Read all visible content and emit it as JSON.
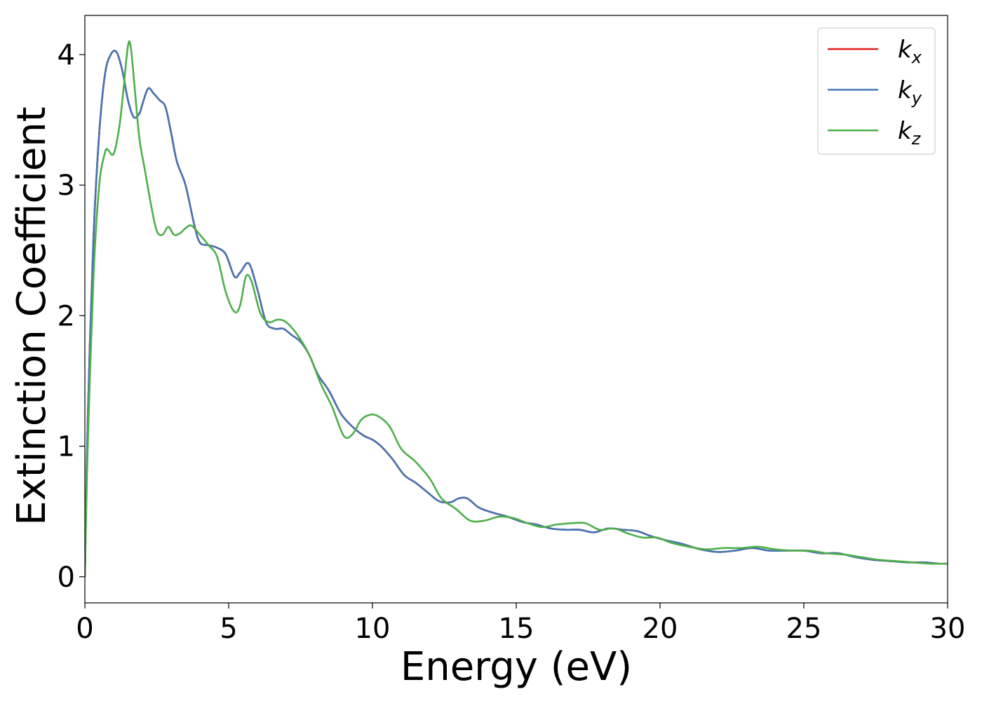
{
  "chart_data": {
    "type": "line",
    "xlabel": "Energy (eV)",
    "ylabel": "Extinction Coefficient",
    "xlim": [
      0,
      30
    ],
    "ylim": [
      -0.2,
      4.3
    ],
    "xticks": [
      0,
      5,
      10,
      15,
      20,
      25,
      30
    ],
    "yticks": [
      0,
      1,
      2,
      3,
      4
    ],
    "grid": false,
    "legend_position": "top-right",
    "series": [
      {
        "name": "k_x",
        "label_base": "k",
        "label_sub": "x",
        "color": "#e41a1c",
        "x": [
          0,
          0.1,
          0.3,
          0.5,
          0.7,
          0.9,
          1.1,
          1.3,
          1.5,
          1.7,
          1.9,
          2.0,
          2.2,
          2.4,
          2.6,
          2.8,
          3.0,
          3.2,
          3.5,
          3.8,
          4.0,
          4.3,
          4.6,
          4.9,
          5.2,
          5.4,
          5.7,
          6.0,
          6.3,
          6.6,
          6.9,
          7.2,
          7.5,
          7.8,
          8.1,
          8.5,
          8.9,
          9.3,
          9.7,
          10.0,
          10.3,
          10.7,
          11.1,
          11.5,
          11.9,
          12.3,
          12.7,
          13.0,
          13.3,
          13.7,
          14.2,
          14.7,
          15.2,
          15.7,
          16.2,
          16.7,
          17.2,
          17.7,
          18.2,
          18.7,
          19.2,
          19.7,
          20.2,
          20.8,
          21.4,
          22.0,
          22.6,
          23.2,
          23.8,
          24.4,
          25.0,
          25.6,
          26.2,
          26.8,
          27.4,
          28.0,
          28.6,
          29.2,
          29.7,
          30.0
        ],
        "y": [
          0,
          1.2,
          2.6,
          3.4,
          3.85,
          4.0,
          4.02,
          3.88,
          3.65,
          3.52,
          3.55,
          3.62,
          3.74,
          3.7,
          3.65,
          3.6,
          3.4,
          3.18,
          3.0,
          2.7,
          2.56,
          2.54,
          2.52,
          2.47,
          2.3,
          2.33,
          2.4,
          2.2,
          1.95,
          1.9,
          1.9,
          1.85,
          1.8,
          1.7,
          1.55,
          1.42,
          1.25,
          1.15,
          1.08,
          1.05,
          1.0,
          0.9,
          0.78,
          0.72,
          0.65,
          0.58,
          0.57,
          0.6,
          0.6,
          0.53,
          0.49,
          0.46,
          0.42,
          0.4,
          0.37,
          0.36,
          0.36,
          0.34,
          0.37,
          0.36,
          0.35,
          0.31,
          0.28,
          0.25,
          0.21,
          0.19,
          0.2,
          0.22,
          0.2,
          0.2,
          0.2,
          0.18,
          0.18,
          0.15,
          0.13,
          0.12,
          0.11,
          0.11,
          0.1,
          0.1
        ]
      },
      {
        "name": "k_y",
        "label_base": "k",
        "label_sub": "y",
        "color": "#4575b4",
        "x": [
          0,
          0.1,
          0.3,
          0.5,
          0.7,
          0.9,
          1.1,
          1.3,
          1.5,
          1.7,
          1.9,
          2.0,
          2.2,
          2.4,
          2.6,
          2.8,
          3.0,
          3.2,
          3.5,
          3.8,
          4.0,
          4.3,
          4.6,
          4.9,
          5.2,
          5.4,
          5.7,
          6.0,
          6.3,
          6.6,
          6.9,
          7.2,
          7.5,
          7.8,
          8.1,
          8.5,
          8.9,
          9.3,
          9.7,
          10.0,
          10.3,
          10.7,
          11.1,
          11.5,
          11.9,
          12.3,
          12.7,
          13.0,
          13.3,
          13.7,
          14.2,
          14.7,
          15.2,
          15.7,
          16.2,
          16.7,
          17.2,
          17.7,
          18.2,
          18.7,
          19.2,
          19.7,
          20.2,
          20.8,
          21.4,
          22.0,
          22.6,
          23.2,
          23.8,
          24.4,
          25.0,
          25.6,
          26.2,
          26.8,
          27.4,
          28.0,
          28.6,
          29.2,
          29.7,
          30.0
        ],
        "y": [
          0,
          1.2,
          2.6,
          3.4,
          3.85,
          4.0,
          4.02,
          3.88,
          3.65,
          3.52,
          3.55,
          3.62,
          3.74,
          3.7,
          3.65,
          3.6,
          3.4,
          3.18,
          3.0,
          2.7,
          2.56,
          2.54,
          2.52,
          2.47,
          2.3,
          2.33,
          2.4,
          2.2,
          1.95,
          1.9,
          1.9,
          1.85,
          1.8,
          1.7,
          1.55,
          1.42,
          1.25,
          1.15,
          1.08,
          1.05,
          1.0,
          0.9,
          0.78,
          0.72,
          0.65,
          0.58,
          0.57,
          0.6,
          0.6,
          0.53,
          0.49,
          0.46,
          0.42,
          0.4,
          0.37,
          0.36,
          0.36,
          0.34,
          0.37,
          0.36,
          0.35,
          0.31,
          0.28,
          0.25,
          0.21,
          0.19,
          0.2,
          0.22,
          0.2,
          0.2,
          0.2,
          0.18,
          0.18,
          0.15,
          0.13,
          0.12,
          0.11,
          0.11,
          0.1,
          0.1
        ]
      },
      {
        "name": "k_z",
        "label_base": "k",
        "label_sub": "z",
        "color": "#4daf4a",
        "x": [
          0,
          0.1,
          0.3,
          0.5,
          0.7,
          0.8,
          1.0,
          1.2,
          1.35,
          1.5,
          1.6,
          1.75,
          1.9,
          2.1,
          2.3,
          2.5,
          2.7,
          2.9,
          3.1,
          3.3,
          3.5,
          3.7,
          4.0,
          4.3,
          4.6,
          4.9,
          5.2,
          5.4,
          5.6,
          5.8,
          6.1,
          6.4,
          6.7,
          7.0,
          7.4,
          7.8,
          8.2,
          8.6,
          9.0,
          9.3,
          9.6,
          9.9,
          10.2,
          10.6,
          11.0,
          11.5,
          12.0,
          12.4,
          12.9,
          13.4,
          13.9,
          14.4,
          14.9,
          15.4,
          15.9,
          16.4,
          16.9,
          17.4,
          17.9,
          18.4,
          18.9,
          19.4,
          19.9,
          20.4,
          21.0,
          21.6,
          22.2,
          22.8,
          23.4,
          24.0,
          24.6,
          25.2,
          25.8,
          26.4,
          27.0,
          27.6,
          28.2,
          28.8,
          29.4,
          30.0
        ],
        "y": [
          0,
          1.0,
          2.3,
          3.0,
          3.25,
          3.27,
          3.24,
          3.45,
          3.75,
          4.07,
          4.05,
          3.7,
          3.35,
          3.1,
          2.85,
          2.65,
          2.62,
          2.68,
          2.62,
          2.63,
          2.67,
          2.69,
          2.62,
          2.54,
          2.45,
          2.18,
          2.03,
          2.08,
          2.3,
          2.26,
          2.02,
          1.95,
          1.97,
          1.95,
          1.85,
          1.7,
          1.48,
          1.3,
          1.08,
          1.09,
          1.2,
          1.24,
          1.23,
          1.15,
          0.98,
          0.88,
          0.75,
          0.6,
          0.52,
          0.43,
          0.43,
          0.46,
          0.45,
          0.41,
          0.38,
          0.4,
          0.41,
          0.41,
          0.36,
          0.37,
          0.33,
          0.3,
          0.3,
          0.26,
          0.23,
          0.21,
          0.22,
          0.22,
          0.23,
          0.21,
          0.2,
          0.2,
          0.18,
          0.17,
          0.15,
          0.13,
          0.12,
          0.11,
          0.1,
          0.1
        ]
      }
    ]
  }
}
